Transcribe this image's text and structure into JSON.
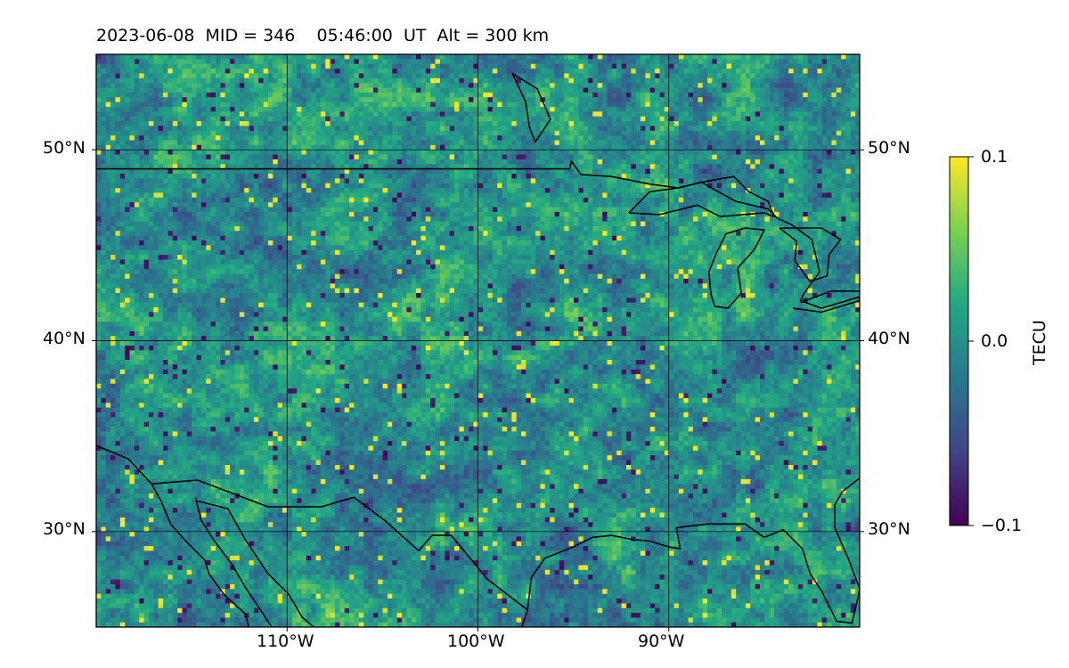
{
  "title": "2023-06-08  MID = 346    05:46:00  UT  Alt = 300 km",
  "map": {
    "projection": "PlateCarree",
    "lon_range": [
      -120,
      -80
    ],
    "lat_range": [
      25,
      55
    ],
    "grid_lons": [
      -110,
      -100,
      -90
    ],
    "grid_lats": [
      30,
      40,
      50
    ],
    "grid": true,
    "lat_labels": [
      "30°N",
      "40°N",
      "50°N"
    ],
    "lon_labels": [
      "110°W",
      "100°W",
      "90°W"
    ],
    "field": "TEC perturbation",
    "coastlines": true,
    "borders": true
  },
  "colorbar": {
    "label": "TECU",
    "colormap": "viridis",
    "min": -0.1,
    "max": 0.1,
    "tick_labels": [
      "−0.1",
      "0.0",
      "0.1"
    ],
    "colors": [
      "#440154",
      "#414487",
      "#2a788e",
      "#22a884",
      "#7ad151",
      "#fde725"
    ]
  }
}
